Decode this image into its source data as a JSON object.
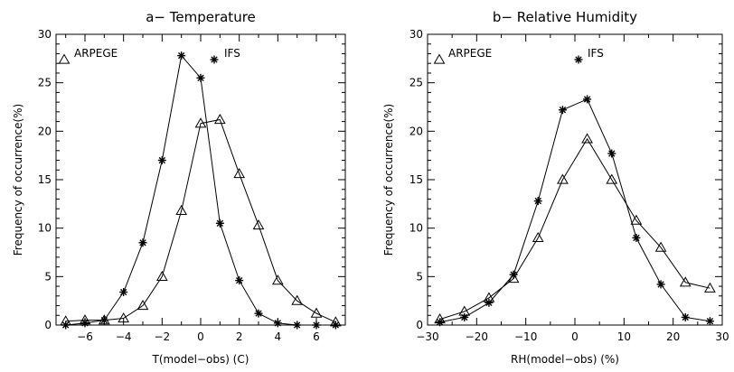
{
  "chart_data": [
    {
      "type": "line",
      "title": "a− Temperature",
      "xlabel": "T(model−obs) (C)",
      "ylabel": "Frequency of occurrence(%)",
      "xlim": [
        -7.5,
        7.5
      ],
      "ylim": [
        0,
        30
      ],
      "xticks": [
        -6,
        -4,
        -2,
        0,
        2,
        4,
        6
      ],
      "xtick_labels": [
        "−6",
        "−4",
        "−2",
        "0",
        "2",
        "4",
        "6"
      ],
      "xminor_step": 1,
      "yticks": [
        0,
        5,
        10,
        15,
        20,
        25,
        30
      ],
      "ytick_labels": [
        "0",
        "5",
        "10",
        "15",
        "20",
        "25",
        "30"
      ],
      "yminor_step": 1,
      "legend_placement": "top",
      "series": [
        {
          "name": "ARPEGE",
          "marker": "triangle",
          "x": [
            -7,
            -6,
            -5,
            -4,
            -3,
            -2,
            -1,
            0,
            1,
            2,
            3,
            4,
            5,
            6,
            7
          ],
          "y": [
            0.4,
            0.5,
            0.5,
            0.7,
            2.0,
            5.0,
            11.8,
            20.8,
            21.2,
            15.6,
            10.3,
            4.6,
            2.5,
            1.2,
            0.3
          ]
        },
        {
          "name": "IFS",
          "marker": "star",
          "x": [
            -7,
            -6,
            -5,
            -4,
            -3,
            -2,
            -1,
            0,
            1,
            2,
            3,
            4,
            5,
            6,
            7
          ],
          "y": [
            0.0,
            0.2,
            0.5,
            3.4,
            8.5,
            17.0,
            27.8,
            25.5,
            10.5,
            4.6,
            1.2,
            0.2,
            0.0,
            0.0,
            0.0
          ]
        }
      ]
    },
    {
      "type": "line",
      "title": "b− Relative Humidity",
      "xlabel": "RH(model−obs) (%)",
      "ylabel": "Frequency of occurrence(%)",
      "xlim": [
        -30,
        30
      ],
      "ylim": [
        0,
        30
      ],
      "xticks": [
        -30,
        -20,
        -10,
        0,
        10,
        20,
        30
      ],
      "xtick_labels": [
        "−30",
        "−20",
        "−10",
        "0",
        "10",
        "20",
        "30"
      ],
      "xminor_step": 5,
      "yticks": [
        0,
        5,
        10,
        15,
        20,
        25,
        30
      ],
      "ytick_labels": [
        "0",
        "5",
        "10",
        "15",
        "20",
        "25",
        "30"
      ],
      "yminor_step": 1,
      "legend_placement": "top",
      "series": [
        {
          "name": "ARPEGE",
          "marker": "triangle",
          "x": [
            -27.5,
            -22.5,
            -17.5,
            -12.5,
            -7.5,
            -2.5,
            2.5,
            7.5,
            12.5,
            17.5,
            22.5,
            27.5
          ],
          "y": [
            0.6,
            1.4,
            2.8,
            4.8,
            9.0,
            15.0,
            19.2,
            15.0,
            10.8,
            8.0,
            4.4,
            3.8
          ]
        },
        {
          "name": "IFS",
          "marker": "star",
          "x": [
            -27.5,
            -22.5,
            -17.5,
            -12.5,
            -7.5,
            -2.5,
            2.5,
            7.5,
            12.5,
            17.5,
            22.5,
            27.5
          ],
          "y": [
            0.3,
            0.8,
            2.3,
            5.2,
            12.8,
            22.2,
            23.3,
            17.7,
            9.0,
            4.2,
            0.8,
            0.4
          ]
        }
      ]
    }
  ]
}
